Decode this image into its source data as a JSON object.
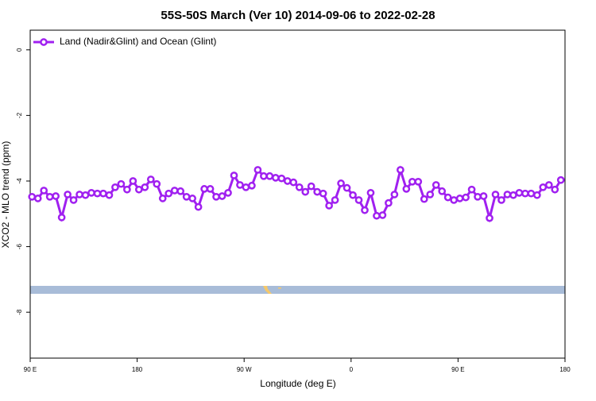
{
  "chart_data": {
    "type": "line",
    "title": "55S-50S March (Ver 10)   2014-09-06 to 2022-02-28",
    "x_label": "Longitude (deg E)",
    "y_label": "XCO2 - MLO trend (ppm)",
    "xlim": [
      90,
      540
    ],
    "xticks": [
      {
        "value": 90,
        "label": "90 E"
      },
      {
        "value": 180,
        "label": "180"
      },
      {
        "value": 270,
        "label": "90 W"
      },
      {
        "value": 360,
        "label": "0"
      },
      {
        "value": 450,
        "label": "90 E"
      },
      {
        "value": 540,
        "label": "180"
      }
    ],
    "ylim": [
      -9.4,
      0.6
    ],
    "yticks": [
      0,
      -2,
      -4,
      -6,
      -8
    ],
    "legend": "top-left",
    "x": [
      91.5,
      96.5,
      101.5,
      106.5,
      111.5,
      116.5,
      121.5,
      126.5,
      131.5,
      136.5,
      141.5,
      146.5,
      151.5,
      156.5,
      161.5,
      166.5,
      171.5,
      176.5,
      181.5,
      186.5,
      191.5,
      196.5,
      201.5,
      206.5,
      211.5,
      216.5,
      221.5,
      226.5,
      231.5,
      236.5,
      241.5,
      246.5,
      251.5,
      256.5,
      261.5,
      266.5,
      271.5,
      276.5,
      281.5,
      286.5,
      291.5,
      296.5,
      301.5,
      306.5,
      311.5,
      316.5,
      321.5,
      326.5,
      331.5,
      336.5,
      341.5,
      346.5,
      351.5,
      356.5,
      361.5,
      366.5,
      371.5,
      376.5,
      381.5,
      386.5,
      391.5,
      396.5,
      401.5,
      406.5,
      411.5,
      416.5,
      421.5,
      426.5,
      431.5,
      436.5,
      441.5,
      446.5,
      451.5,
      456.5,
      461.5,
      466.5,
      471.5,
      476.5,
      481.5,
      486.5,
      491.5,
      496.5,
      501.5,
      506.5,
      511.5,
      516.5,
      521.5,
      526.5,
      531.5,
      536.5
    ],
    "series": [
      {
        "name": "Land (Nadir&Glint) and Ocean (Glint)",
        "color": "#a020f0",
        "values": [
          -4.48,
          -4.53,
          -4.29,
          -4.48,
          -4.46,
          -5.11,
          -4.41,
          -4.58,
          -4.41,
          -4.43,
          -4.36,
          -4.38,
          -4.38,
          -4.43,
          -4.19,
          -4.09,
          -4.26,
          -4.0,
          -4.26,
          -4.19,
          -3.95,
          -4.09,
          -4.53,
          -4.38,
          -4.29,
          -4.31,
          -4.48,
          -4.53,
          -4.79,
          -4.24,
          -4.24,
          -4.48,
          -4.46,
          -4.36,
          -3.83,
          -4.12,
          -4.19,
          -4.14,
          -3.66,
          -3.85,
          -3.85,
          -3.9,
          -3.92,
          -4.0,
          -4.04,
          -4.19,
          -4.33,
          -4.16,
          -4.33,
          -4.38,
          -4.75,
          -4.58,
          -4.07,
          -4.21,
          -4.43,
          -4.58,
          -4.89,
          -4.36,
          -5.06,
          -5.04,
          -4.67,
          -4.41,
          -3.66,
          -4.24,
          -4.02,
          -4.02,
          -4.55,
          -4.41,
          -4.12,
          -4.31,
          -4.5,
          -4.58,
          -4.53,
          -4.5,
          -4.26,
          -4.48,
          -4.46,
          -5.13,
          -4.41,
          -4.58,
          -4.41,
          -4.43,
          -4.36,
          -4.38,
          -4.38,
          -4.43,
          -4.19,
          -4.12,
          -4.26,
          -3.97
        ]
      }
    ]
  }
}
